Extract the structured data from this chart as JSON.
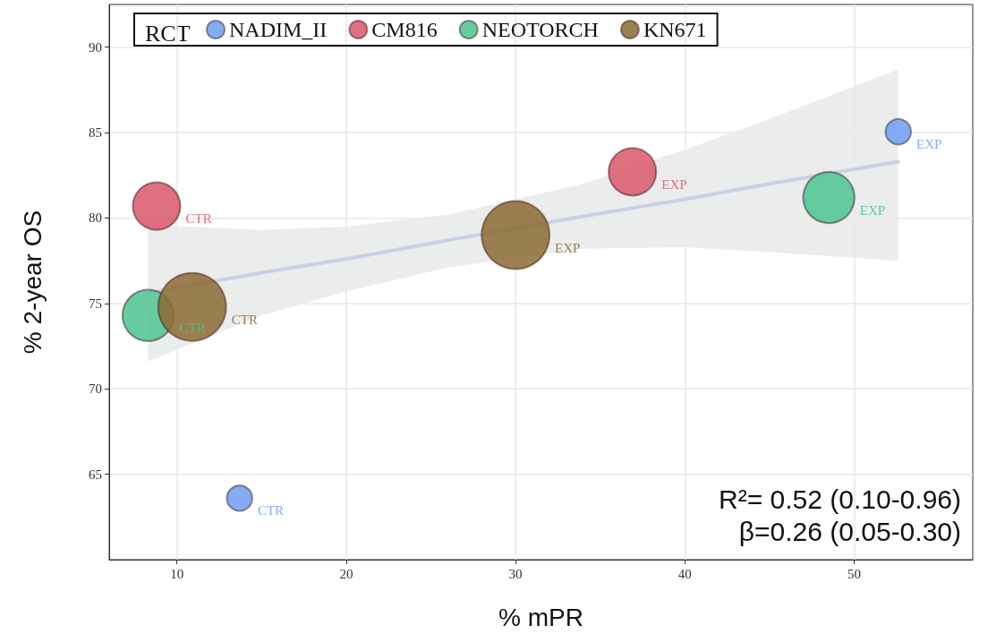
{
  "chart_data": {
    "type": "bubble",
    "xlabel": "% mPR",
    "ylabel": "% 2-year OS",
    "legend_title": "RCT",
    "legend": "top",
    "grid": true,
    "marker": "circle",
    "xlim": [
      6,
      57
    ],
    "xticks": [
      10,
      20,
      30,
      40,
      50
    ],
    "ylim": [
      60,
      92.5
    ],
    "yticks": [
      65,
      70,
      75,
      80,
      85,
      90
    ],
    "series": [
      {
        "name": "NADIM_II",
        "color": "#6f9ef5",
        "x": [
          13.7,
          52.6
        ],
        "values": [
          63.6,
          85.05
        ],
        "sizes": [
          0.14,
          0.14
        ],
        "value_labels": [
          "CTR",
          "EXP"
        ]
      },
      {
        "name": "CM816",
        "color": "#d9576a",
        "x": [
          8.8,
          36.9
        ],
        "values": [
          80.7,
          82.7
        ],
        "sizes": [
          0.49,
          0.49
        ],
        "value_labels": [
          "CTR",
          "EXP"
        ]
      },
      {
        "name": "NEOTORCH",
        "color": "#4cc490",
        "x": [
          8.3,
          48.5
        ],
        "values": [
          74.3,
          81.2
        ],
        "sizes": [
          0.57,
          0.57
        ],
        "value_labels": [
          "CTR",
          "EXP"
        ]
      },
      {
        "name": "KN671",
        "color": "#8b6a33",
        "x": [
          10.9,
          30.0
        ],
        "values": [
          74.8,
          79.0
        ],
        "sizes": [
          1,
          1
        ],
        "value_labels": [
          "CTR",
          "EXP"
        ]
      },
      {
        "type": "line",
        "color": "#c9d1e6",
        "marker": "none",
        "x": [
          8.3,
          15,
          20,
          26,
          34,
          40,
          45,
          52.6
        ],
        "values": [
          75.6,
          76.8,
          77.6,
          78.7,
          80.1,
          81.1,
          82.0,
          83.3
        ],
        "lower": [
          71.6,
          74.3,
          75.7,
          77.1,
          78.2,
          78.3,
          78.0,
          77.5
        ],
        "upper": [
          79.6,
          79.3,
          79.5,
          80.2,
          82.0,
          84.0,
          85.8,
          88.7
        ]
      }
    ],
    "annotations": [
      "R²= 0.52 (0.10-0.96)",
      "β=0.26 (0.05-0.30)"
    ]
  }
}
